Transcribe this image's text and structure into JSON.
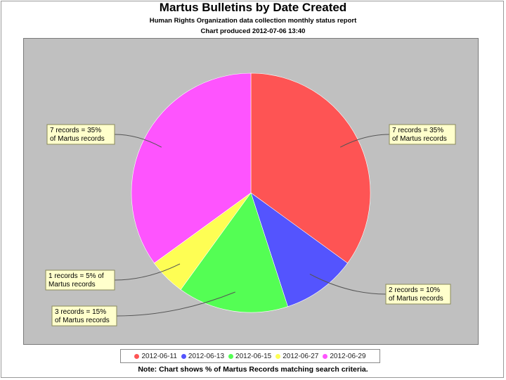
{
  "chart_data": {
    "type": "pie",
    "title": "Martus Bulletins by Date Created",
    "subtitle": "Human Rights Organization data collection monthly status report",
    "subtitle2": "Chart produced 2012-07-06 13:40",
    "categories": [
      "2012-06-11",
      "2012-06-13",
      "2012-06-15",
      "2012-06-27",
      "2012-06-29"
    ],
    "values": [
      7,
      2,
      3,
      1,
      7
    ],
    "percents": [
      35,
      10,
      15,
      5,
      35
    ],
    "colors": [
      "#fe5454",
      "#5454fe",
      "#54fe54",
      "#fefe54",
      "#fe54fe"
    ],
    "labels": [
      [
        "7 records = 35%",
        "of Martus records"
      ],
      [
        "2 records = 10%",
        "of Martus records"
      ],
      [
        "3 records = 15%",
        "of Martus records"
      ],
      [
        "1 records = 5% of",
        "Martus records"
      ],
      [
        "7 records = 35%",
        "of Martus records"
      ]
    ],
    "legend_position": "bottom",
    "note": "Note: Chart shows % of Martus Records matching search criteria."
  }
}
